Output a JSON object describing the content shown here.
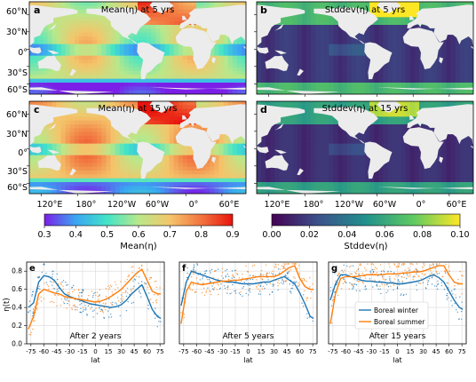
{
  "figure": {
    "maps": [
      {
        "label": "a",
        "title": "Mean(η) at 5 yrs",
        "kind": "mean"
      },
      {
        "label": "b",
        "title": "Stddev(η) at 5 yrs",
        "kind": "std"
      },
      {
        "label": "c",
        "title": "Mean(η) at 15 yrs",
        "kind": "mean"
      },
      {
        "label": "d",
        "title": "Stddev(η) at 15 yrs",
        "kind": "std"
      }
    ],
    "map_lat_ticks": [
      "60°N",
      "30°N",
      "0°",
      "30°S",
      "60°S"
    ],
    "map_lon_ticks": [
      "120°E",
      "180°",
      "120°W",
      "60°W",
      "0°",
      "60°E"
    ],
    "colorbars": [
      {
        "label": "Mean(η)",
        "ticks": [
          "0.3",
          "0.4",
          "0.5",
          "0.6",
          "0.7",
          "0.8",
          "0.9"
        ],
        "min": 0.3,
        "max": 0.9,
        "colors": [
          "#7b1fe8",
          "#3aa6f2",
          "#42e4c8",
          "#b9e88a",
          "#f4c56b",
          "#f2743f",
          "#e8140c"
        ]
      },
      {
        "label": "Stddev(η)",
        "ticks": [
          "0.00",
          "0.02",
          "0.04",
          "0.06",
          "0.08",
          "0.10"
        ],
        "min": 0.0,
        "max": 0.1,
        "colors": [
          "#440154",
          "#3b528b",
          "#21918c",
          "#5ec962",
          "#fde725"
        ]
      }
    ],
    "panels": [
      {
        "label": "e",
        "note": "After 2 years"
      },
      {
        "label": "f",
        "note": "After 5 years"
      },
      {
        "label": "g",
        "note": "After 15 years"
      }
    ],
    "ylabel": "η(t)",
    "xlabel": "lat",
    "legend": [
      "Boreal winter",
      "Boreal summer"
    ],
    "colors": {
      "winter": "#1f77b4",
      "summer": "#ff7f0e",
      "land": "#ececec",
      "grid": "#d9d9d9"
    }
  },
  "chart_data": [
    {
      "type": "line",
      "panel": "e",
      "xlabel": "lat",
      "ylabel": "η(t)",
      "x_ticks": [
        "-75",
        "-60",
        "-45",
        "-30",
        "-15",
        "0",
        "15",
        "30",
        "45",
        "60",
        "75"
      ],
      "y_ticks": [
        "0.0",
        "0.2",
        "0.4",
        "0.6",
        "0.8"
      ],
      "xlim": [
        -80,
        80
      ],
      "ylim": [
        0,
        0.9
      ],
      "x": [
        -78,
        -72,
        -66,
        -60,
        -54,
        -48,
        -42,
        -36,
        -30,
        -24,
        -18,
        -12,
        -6,
        0,
        6,
        12,
        18,
        24,
        30,
        36,
        42,
        48,
        54,
        60,
        66,
        72,
        76
      ],
      "series": [
        {
          "name": "Boreal winter",
          "values": [
            0.4,
            0.45,
            0.68,
            0.75,
            0.74,
            0.7,
            0.62,
            0.55,
            0.52,
            0.5,
            0.48,
            0.46,
            0.44,
            0.43,
            0.42,
            0.41,
            0.4,
            0.41,
            0.43,
            0.48,
            0.55,
            0.6,
            0.65,
            0.52,
            0.38,
            0.3,
            0.28
          ]
        },
        {
          "name": "Boreal summer",
          "values": [
            0.16,
            0.3,
            0.55,
            0.6,
            0.58,
            0.56,
            0.55,
            0.52,
            0.51,
            0.5,
            0.49,
            0.48,
            0.47,
            0.46,
            0.47,
            0.49,
            0.52,
            0.56,
            0.6,
            0.66,
            0.72,
            0.78,
            0.82,
            0.7,
            0.58,
            0.55,
            0.55
          ]
        }
      ],
      "note": "After 2 years"
    },
    {
      "type": "line",
      "panel": "f",
      "xlabel": "lat",
      "x_ticks": [
        "-75",
        "-60",
        "-45",
        "-30",
        "-15",
        "0",
        "15",
        "30",
        "45",
        "60",
        "75"
      ],
      "xlim": [
        -80,
        80
      ],
      "ylim": [
        0,
        0.9
      ],
      "x": [
        -78,
        -72,
        -66,
        -60,
        -54,
        -48,
        -42,
        -36,
        -30,
        -24,
        -18,
        -12,
        -6,
        0,
        6,
        12,
        18,
        24,
        30,
        36,
        42,
        48,
        54,
        60,
        66,
        72,
        76
      ],
      "series": [
        {
          "name": "Boreal winter",
          "values": [
            0.42,
            0.68,
            0.8,
            0.78,
            0.76,
            0.74,
            0.72,
            0.7,
            0.69,
            0.68,
            0.68,
            0.67,
            0.66,
            0.66,
            0.66,
            0.67,
            0.68,
            0.68,
            0.7,
            0.72,
            0.74,
            0.7,
            0.66,
            0.56,
            0.44,
            0.3,
            0.28
          ]
        },
        {
          "name": "Boreal summer",
          "values": [
            0.22,
            0.58,
            0.68,
            0.66,
            0.65,
            0.66,
            0.67,
            0.68,
            0.69,
            0.69,
            0.7,
            0.7,
            0.71,
            0.72,
            0.73,
            0.74,
            0.74,
            0.74,
            0.74,
            0.76,
            0.8,
            0.84,
            0.86,
            0.72,
            0.63,
            0.6,
            0.6
          ]
        }
      ],
      "note": "After 5 years"
    },
    {
      "type": "line",
      "panel": "g",
      "xlabel": "lat",
      "x_ticks": [
        "-75",
        "-60",
        "-45",
        "-30",
        "-15",
        "0",
        "15",
        "30",
        "45",
        "60",
        "75"
      ],
      "xlim": [
        -80,
        80
      ],
      "ylim": [
        0,
        0.9
      ],
      "x": [
        -78,
        -72,
        -66,
        -60,
        -54,
        -48,
        -42,
        -36,
        -30,
        -24,
        -18,
        -12,
        -6,
        0,
        6,
        12,
        18,
        24,
        30,
        36,
        42,
        48,
        54,
        60,
        66,
        72,
        76
      ],
      "series": [
        {
          "name": "Boreal winter",
          "values": [
            0.48,
            0.66,
            0.76,
            0.76,
            0.74,
            0.72,
            0.7,
            0.69,
            0.69,
            0.68,
            0.68,
            0.67,
            0.67,
            0.66,
            0.66,
            0.67,
            0.68,
            0.69,
            0.71,
            0.74,
            0.76,
            0.73,
            0.68,
            0.58,
            0.48,
            0.4,
            0.38
          ]
        },
        {
          "name": "Boreal summer",
          "values": [
            0.22,
            0.55,
            0.72,
            0.74,
            0.74,
            0.74,
            0.75,
            0.76,
            0.76,
            0.76,
            0.76,
            0.77,
            0.77,
            0.77,
            0.78,
            0.78,
            0.79,
            0.79,
            0.8,
            0.82,
            0.84,
            0.86,
            0.86,
            0.76,
            0.68,
            0.66,
            0.66
          ]
        }
      ],
      "note": "After 15 years"
    }
  ]
}
